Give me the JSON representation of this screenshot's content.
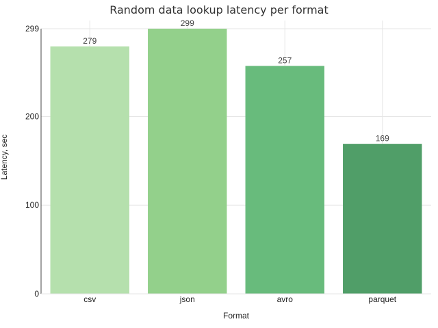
{
  "chart_data": {
    "type": "bar",
    "title": "Random data lookup latency per format",
    "xlabel": "Format",
    "ylabel": "Latency, sec",
    "categories": [
      "csv",
      "json",
      "avro",
      "parquet"
    ],
    "values": [
      279,
      299,
      257,
      169
    ],
    "data_labels": [
      "279",
      "299",
      "257",
      "169"
    ],
    "colors": [
      "#b5e0ad",
      "#93d08b",
      "#68bb7c",
      "#509e68"
    ],
    "ylim": [
      0,
      299
    ],
    "yticks": [
      0,
      100,
      200,
      299
    ],
    "grid": true,
    "legend": "none"
  }
}
